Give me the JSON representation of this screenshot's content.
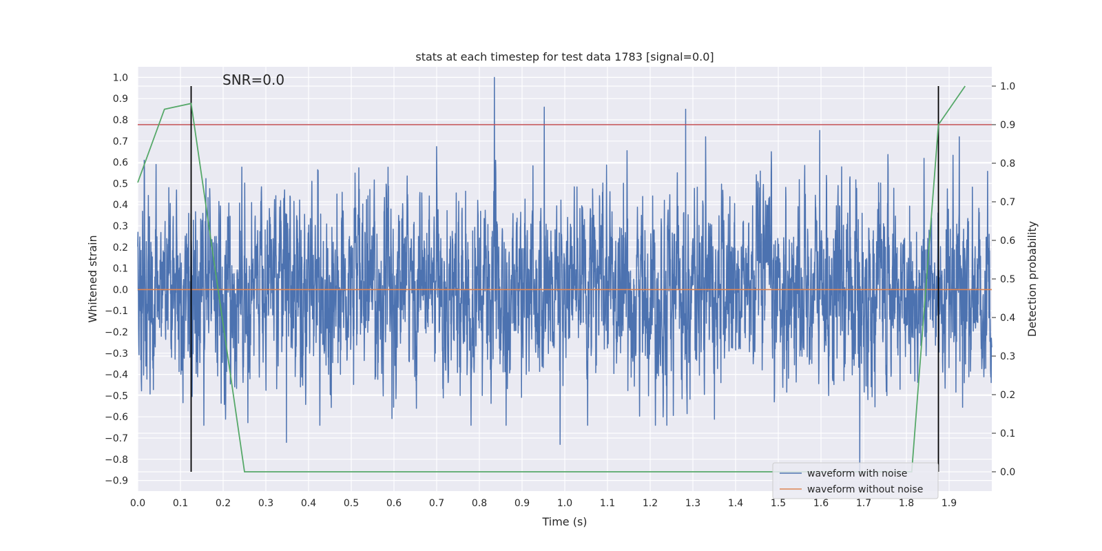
{
  "chart_data": {
    "type": "line",
    "title": "stats at each timestep for test data 1783 [signal=0.0]",
    "annotation": "SNR=0.0",
    "xlabel": "Time (s)",
    "ylabel_left": "Whitened strain",
    "ylabel_right": "Detection probability",
    "xlim": [
      0.0,
      2.0
    ],
    "ylim_left": [
      -0.95,
      1.05
    ],
    "ylim_right": [
      -0.05,
      1.05
    ],
    "x_ticks": [
      "0.0",
      "0.1",
      "0.2",
      "0.3",
      "0.4",
      "0.5",
      "0.6",
      "0.7",
      "0.8",
      "0.9",
      "1.0",
      "1.1",
      "1.2",
      "1.3",
      "1.4",
      "1.5",
      "1.6",
      "1.7",
      "1.8",
      "1.9"
    ],
    "y_ticks_left": [
      "-0.9",
      "-0.8",
      "-0.7",
      "-0.6",
      "-0.5",
      "-0.4",
      "-0.3",
      "-0.2",
      "-0.1",
      "0.0",
      "0.1",
      "0.2",
      "0.3",
      "0.4",
      "0.5",
      "0.6",
      "0.7",
      "0.8",
      "0.9",
      "1.0"
    ],
    "y_ticks_right": [
      "0.0",
      "0.1",
      "0.2",
      "0.3",
      "0.4",
      "0.5",
      "0.6",
      "0.7",
      "0.8",
      "0.9",
      "1.0"
    ],
    "grid": true,
    "legend_position": "lower-right",
    "series": [
      {
        "name": "waveform with noise",
        "color": "#4c72b0",
        "axis": "left",
        "description_values": {
          "n_samples": 4096,
          "x_range": [
            0.0,
            2.0
          ],
          "typical_range": [
            -0.6,
            0.7
          ],
          "peaks": [
            {
              "x": 0.835,
              "y": 1.0
            },
            {
              "x": 0.952,
              "y": 0.86
            },
            {
              "x": 1.283,
              "y": 0.85
            },
            {
              "x": 1.597,
              "y": 0.75
            },
            {
              "x": 1.691,
              "y": -0.86
            },
            {
              "x": 0.989,
              "y": -0.73
            },
            {
              "x": 0.348,
              "y": -0.72
            }
          ]
        }
      },
      {
        "name": "waveform without noise",
        "color": "#dd8452",
        "axis": "left",
        "x": [
          0.0,
          2.0
        ],
        "y": [
          0.0,
          0.0
        ]
      },
      {
        "name": "",
        "color": "#55a868",
        "axis": "right",
        "x": [
          0.0,
          0.0625,
          0.125,
          0.25,
          1.8125,
          1.875,
          1.9375
        ],
        "y": [
          0.75,
          0.94,
          0.955,
          0.0,
          0.0,
          0.9,
          1.0
        ]
      }
    ],
    "threshold": {
      "axis": "right",
      "value": 0.9,
      "color": "#c44e52"
    },
    "vertical_markers": {
      "x": [
        0.125,
        1.875
      ],
      "y_range_right": [
        0.0,
        1.0
      ],
      "color": "#000000"
    }
  }
}
